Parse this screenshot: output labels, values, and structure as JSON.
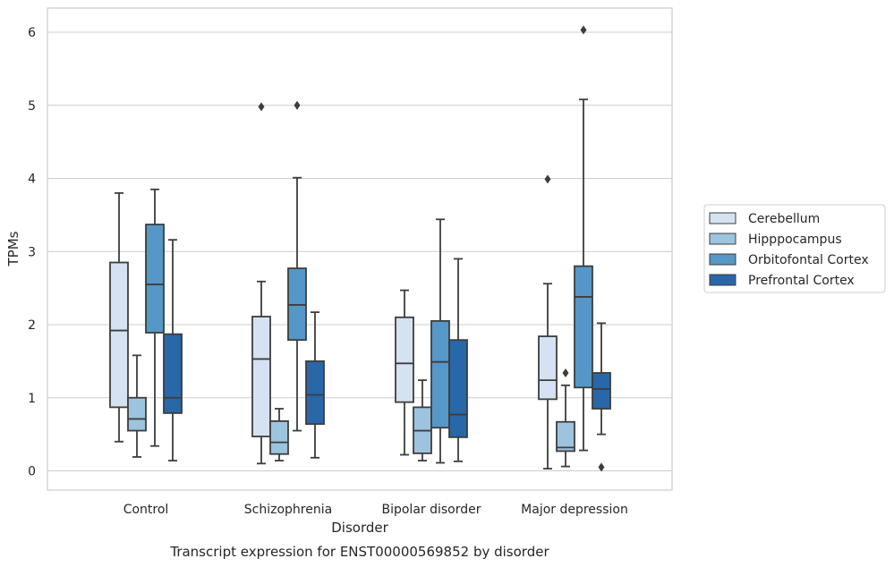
{
  "chart_data": {
    "type": "box",
    "title": "",
    "caption": "Transcript expression for ENST00000569852 by disorder",
    "xlabel": "Disorder",
    "ylabel": "TPMs",
    "ylim": [
      -0.25,
      6.33
    ],
    "yticks": [
      0,
      1,
      2,
      3,
      4,
      5,
      6
    ],
    "grid": "horizontal",
    "legend_position": "right",
    "categories": [
      "Control",
      "Schizophrenia",
      "Bipolar disorder",
      "Major depression"
    ],
    "series": [
      {
        "name": "Cerebellum",
        "color": "#d4e2f1",
        "boxes": [
          {
            "whisker_low": 0.4,
            "q1": 0.87,
            "median": 1.92,
            "q3": 2.85,
            "whisker_high": 3.8,
            "outliers": []
          },
          {
            "whisker_low": 0.1,
            "q1": 0.47,
            "median": 1.53,
            "q3": 2.11,
            "whisker_high": 2.59,
            "outliers": [
              4.98
            ]
          },
          {
            "whisker_low": 0.22,
            "q1": 0.94,
            "median": 1.47,
            "q3": 2.1,
            "whisker_high": 2.47,
            "outliers": []
          },
          {
            "whisker_low": 0.03,
            "q1": 0.98,
            "median": 1.24,
            "q3": 1.84,
            "whisker_high": 2.56,
            "outliers": [
              3.99
            ]
          }
        ]
      },
      {
        "name": "Hipppocampus",
        "color": "#9dc4de",
        "boxes": [
          {
            "whisker_low": 0.19,
            "q1": 0.55,
            "median": 0.71,
            "q3": 1.0,
            "whisker_high": 1.58,
            "outliers": []
          },
          {
            "whisker_low": 0.14,
            "q1": 0.23,
            "median": 0.39,
            "q3": 0.68,
            "whisker_high": 0.85,
            "outliers": []
          },
          {
            "whisker_low": 0.14,
            "q1": 0.24,
            "median": 0.55,
            "q3": 0.87,
            "whisker_high": 1.24,
            "outliers": []
          },
          {
            "whisker_low": 0.06,
            "q1": 0.27,
            "median": 0.32,
            "q3": 0.67,
            "whisker_high": 1.17,
            "outliers": [
              1.34
            ]
          }
        ]
      },
      {
        "name": "Orbitofontal Cortex",
        "color": "#5597c7",
        "boxes": [
          {
            "whisker_low": 0.34,
            "q1": 1.89,
            "median": 2.55,
            "q3": 3.37,
            "whisker_high": 3.85,
            "outliers": []
          },
          {
            "whisker_low": 0.55,
            "q1": 1.79,
            "median": 2.27,
            "q3": 2.77,
            "whisker_high": 4.01,
            "outliers": [
              5.0
            ]
          },
          {
            "whisker_low": 0.11,
            "q1": 0.59,
            "median": 1.49,
            "q3": 2.05,
            "whisker_high": 3.44,
            "outliers": []
          },
          {
            "whisker_low": 0.28,
            "q1": 1.14,
            "median": 2.38,
            "q3": 2.8,
            "whisker_high": 5.08,
            "outliers": [
              6.03
            ]
          }
        ]
      },
      {
        "name": "Prefrontal Cortex",
        "color": "#2867a8",
        "boxes": [
          {
            "whisker_low": 0.14,
            "q1": 0.79,
            "median": 1.0,
            "q3": 1.87,
            "whisker_high": 3.16,
            "outliers": []
          },
          {
            "whisker_low": 0.18,
            "q1": 0.64,
            "median": 1.04,
            "q3": 1.5,
            "whisker_high": 2.17,
            "outliers": []
          },
          {
            "whisker_low": 0.13,
            "q1": 0.46,
            "median": 0.77,
            "q3": 1.79,
            "whisker_high": 2.9,
            "outliers": []
          },
          {
            "whisker_low": 0.5,
            "q1": 0.85,
            "median": 1.12,
            "q3": 1.34,
            "whisker_high": 2.02,
            "outliers": [
              0.05
            ]
          }
        ]
      }
    ]
  }
}
